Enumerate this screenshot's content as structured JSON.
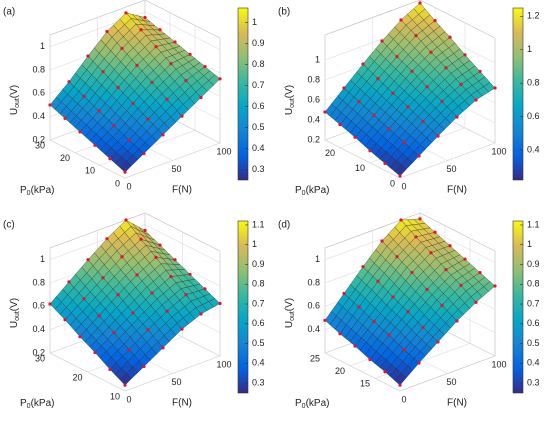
{
  "chart_data": [
    {
      "type": "surface",
      "label": "(a)",
      "xlabel": "F(N)",
      "ylabel": [
        "P",
        "0",
        "(kPa)"
      ],
      "zlabel": [
        "U",
        "out",
        "(V)"
      ],
      "x": [
        0,
        20,
        40,
        60,
        80,
        100
      ],
      "y": [
        0,
        6,
        12,
        18,
        24,
        30
      ],
      "z": [
        [
          0.25,
          0.35,
          0.45,
          0.55,
          0.65,
          0.75
        ],
        [
          0.3,
          0.4,
          0.52,
          0.63,
          0.73,
          0.79
        ],
        [
          0.35,
          0.46,
          0.59,
          0.71,
          0.81,
          0.83
        ],
        [
          0.4,
          0.52,
          0.66,
          0.79,
          0.89,
          0.87
        ],
        [
          0.45,
          0.58,
          0.73,
          0.87,
          0.97,
          0.91
        ],
        [
          0.5,
          0.64,
          0.8,
          0.95,
          1.05,
          0.95
        ]
      ],
      "xlim": [
        0,
        100
      ],
      "ylim": [
        0,
        30
      ],
      "zlim": [
        0.2,
        1.1
      ],
      "xticks": [
        0,
        50,
        100
      ],
      "yticks": [
        0,
        10,
        20,
        30
      ],
      "zticks": [
        0.2,
        0.4,
        0.6,
        0.8,
        1
      ],
      "clim": [
        0.25,
        1.07
      ],
      "cticks": [
        0.3,
        0.4,
        0.5,
        0.6,
        0.7,
        0.8,
        0.9,
        1
      ],
      "colormap": [
        "#352a87",
        "#0363e1",
        "#1485d4",
        "#06a7c6",
        "#38b99e",
        "#92bf73",
        "#d9ba56",
        "#f9fb0e"
      ],
      "edge_color": "#1a1a1a",
      "marker_color": "#e8112d"
    },
    {
      "type": "surface",
      "label": "(b)",
      "xlabel": "F(N)",
      "ylabel": [
        "P",
        "0",
        "(kPa)"
      ],
      "zlabel": [
        "U",
        "out",
        "(V)"
      ],
      "x": [
        0,
        20,
        40,
        60,
        80,
        100
      ],
      "y": [
        0,
        5,
        10,
        15,
        20,
        25
      ],
      "z": [
        [
          0.22,
          0.35,
          0.48,
          0.6,
          0.7,
          0.75
        ],
        [
          0.27,
          0.41,
          0.55,
          0.68,
          0.78,
          0.84
        ],
        [
          0.32,
          0.47,
          0.62,
          0.75,
          0.87,
          0.93
        ],
        [
          0.38,
          0.53,
          0.68,
          0.83,
          0.95,
          1.03
        ],
        [
          0.43,
          0.59,
          0.75,
          0.9,
          1.04,
          1.12
        ],
        [
          0.48,
          0.65,
          0.82,
          0.98,
          1.12,
          1.22
        ]
      ],
      "xlim": [
        0,
        100
      ],
      "ylim": [
        0,
        25
      ],
      "zlim": [
        0.2,
        1.25
      ],
      "xticks": [
        0,
        50,
        100
      ],
      "yticks": [
        0,
        10,
        20
      ],
      "zticks": [
        0.2,
        0.4,
        0.6,
        0.8,
        1
      ],
      "clim": [
        0.22,
        1.25
      ],
      "cticks": [
        0.4,
        0.6,
        0.8,
        1,
        1.2
      ],
      "colormap": [
        "#352a87",
        "#0363e1",
        "#1485d4",
        "#06a7c6",
        "#38b99e",
        "#92bf73",
        "#d9ba56",
        "#f9fb0e"
      ],
      "edge_color": "#1a1a1a",
      "marker_color": "#e8112d"
    },
    {
      "type": "surface",
      "label": "(c)",
      "xlabel": "F(N)",
      "ylabel": [
        "P",
        "0",
        "(kPa)"
      ],
      "zlabel": [
        "U",
        "out",
        "(V)"
      ],
      "x": [
        0,
        20,
        40,
        60,
        80,
        100
      ],
      "y": [
        10,
        14,
        18,
        22,
        26,
        30
      ],
      "z": [
        [
          0.25,
          0.35,
          0.45,
          0.55,
          0.62,
          0.65
        ],
        [
          0.32,
          0.43,
          0.54,
          0.64,
          0.72,
          0.71
        ],
        [
          0.4,
          0.51,
          0.62,
          0.73,
          0.81,
          0.77
        ],
        [
          0.47,
          0.59,
          0.71,
          0.82,
          0.91,
          0.83
        ],
        [
          0.55,
          0.67,
          0.79,
          0.91,
          1.0,
          0.89
        ],
        [
          0.62,
          0.75,
          0.88,
          1.0,
          1.1,
          0.95
        ]
      ],
      "xlim": [
        0,
        100
      ],
      "ylim": [
        10,
        30
      ],
      "zlim": [
        0.2,
        1.1
      ],
      "xticks": [
        0,
        50,
        100
      ],
      "yticks": [
        10,
        20,
        30
      ],
      "zticks": [
        0.2,
        0.4,
        0.6,
        0.8,
        1
      ],
      "clim": [
        0.25,
        1.12
      ],
      "cticks": [
        0.3,
        0.4,
        0.5,
        0.6,
        0.7,
        0.8,
        0.9,
        1,
        1.1
      ],
      "colormap": [
        "#352a87",
        "#0363e1",
        "#1485d4",
        "#06a7c6",
        "#38b99e",
        "#92bf73",
        "#d9ba56",
        "#f9fb0e"
      ],
      "edge_color": "#1a1a1a",
      "marker_color": "#e8112d"
    },
    {
      "type": "surface",
      "label": "(d)",
      "xlabel": "F(N)",
      "ylabel": [
        "P",
        "0",
        "(kPa)"
      ],
      "zlabel": [
        "U",
        "out",
        "(V)"
      ],
      "x": [
        0,
        20,
        40,
        60,
        80,
        100
      ],
      "y": [
        10,
        13,
        16,
        19,
        22,
        25
      ],
      "z": [
        [
          0.25,
          0.38,
          0.5,
          0.62,
          0.72,
          0.8
        ],
        [
          0.3,
          0.43,
          0.56,
          0.69,
          0.8,
          0.85
        ],
        [
          0.34,
          0.49,
          0.63,
          0.76,
          0.87,
          0.9
        ],
        [
          0.39,
          0.54,
          0.69,
          0.84,
          0.95,
          0.95
        ],
        [
          0.43,
          0.6,
          0.76,
          0.91,
          1.02,
          1.0
        ],
        [
          0.48,
          0.65,
          0.82,
          0.98,
          1.1,
          1.05
        ]
      ],
      "xlim": [
        0,
        100
      ],
      "ylim": [
        10,
        25
      ],
      "zlim": [
        0.2,
        1.1
      ],
      "xticks": [
        0,
        50,
        100
      ],
      "yticks": [
        15,
        20,
        25
      ],
      "zticks": [
        0.4,
        0.6,
        0.8,
        1
      ],
      "clim": [
        0.25,
        1.12
      ],
      "cticks": [
        0.3,
        0.4,
        0.5,
        0.6,
        0.7,
        0.8,
        0.9,
        1,
        1.1
      ],
      "colormap": [
        "#352a87",
        "#0363e1",
        "#1485d4",
        "#06a7c6",
        "#38b99e",
        "#92bf73",
        "#d9ba56",
        "#f9fb0e"
      ],
      "edge_color": "#1a1a1a",
      "marker_color": "#e8112d"
    }
  ]
}
